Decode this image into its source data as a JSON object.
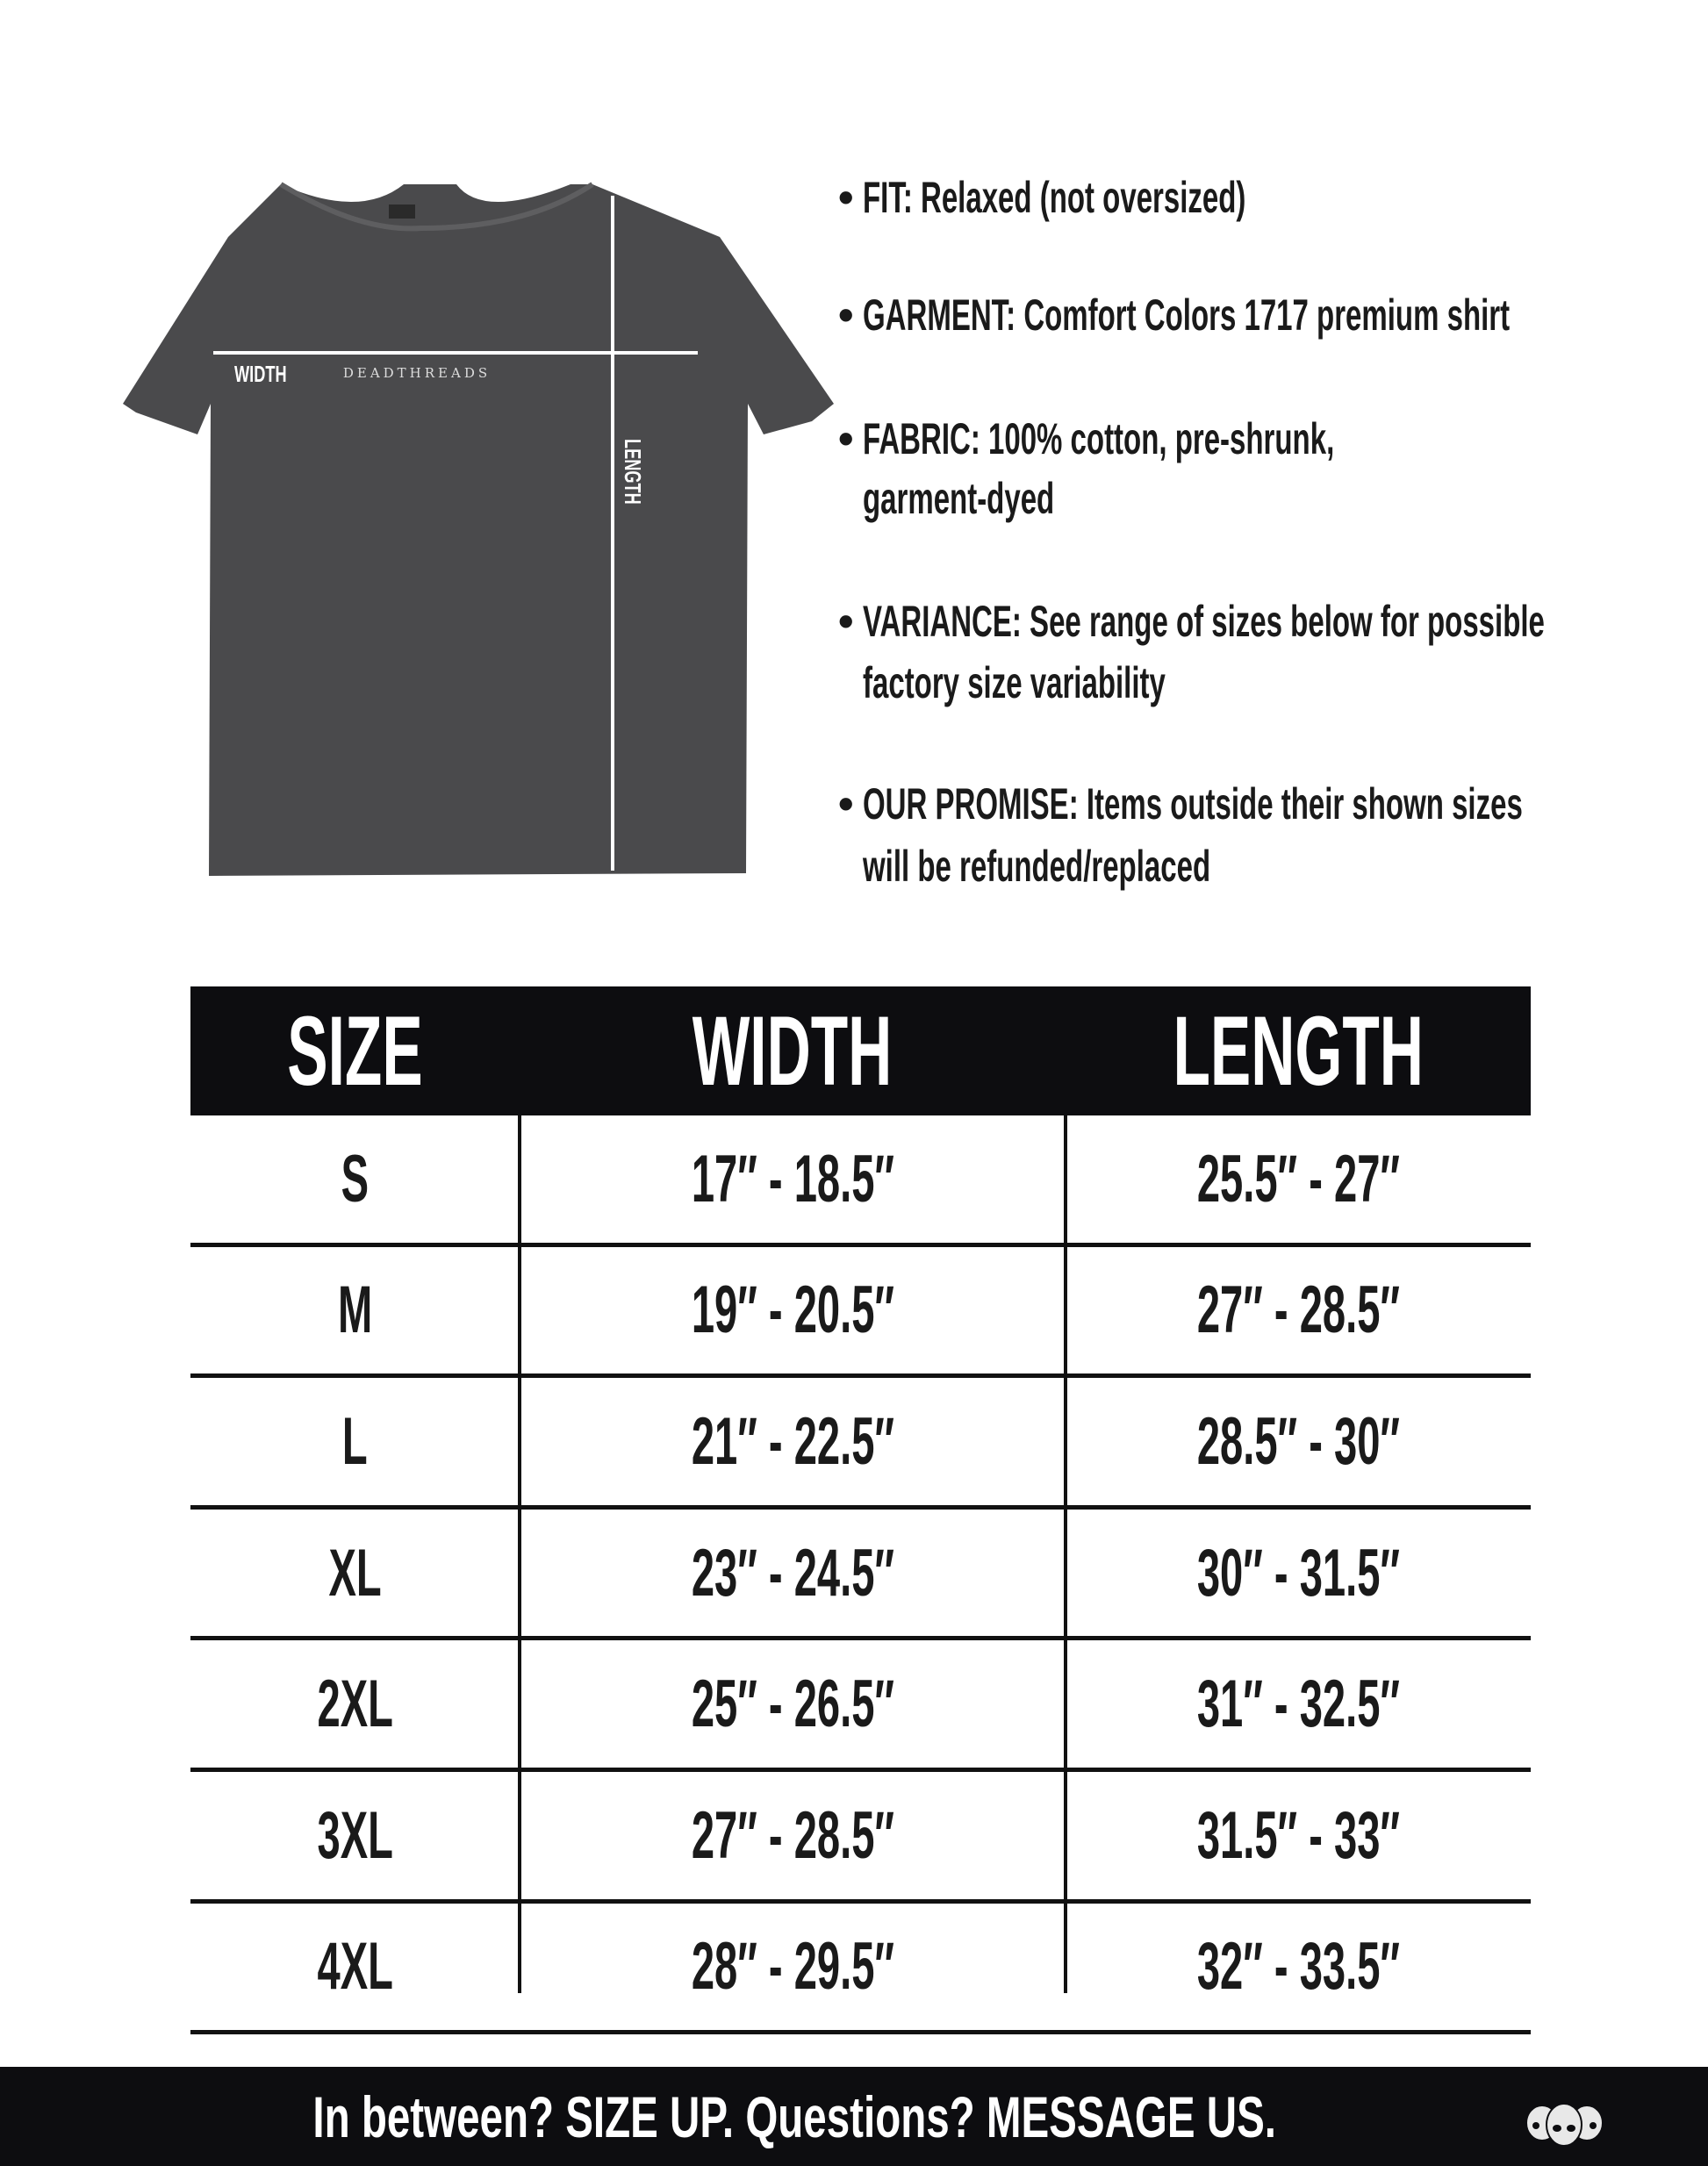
{
  "shirt": {
    "brand": "DEADTHREADS",
    "width_label": "WIDTH",
    "length_label": "LENGTH",
    "color": "#4a4a4c"
  },
  "bullets": [
    {
      "lines": [
        "FIT: Relaxed (not oversized)"
      ]
    },
    {
      "lines": [
        "GARMENT: Comfort Colors 1717 premium shirt"
      ]
    },
    {
      "lines": [
        "FABRIC: 100% cotton, pre-shrunk,",
        "garment-dyed"
      ]
    },
    {
      "lines": [
        "VARIANCE: See range of sizes below for possible",
        "factory size variability"
      ]
    },
    {
      "lines": [
        "OUR PROMISE: Items outside their shown sizes",
        "will be refunded/replaced"
      ]
    }
  ],
  "table": {
    "headers": [
      "SIZE",
      "WIDTH",
      "LENGTH"
    ],
    "rows": [
      [
        "S",
        "17″ - 18.5″",
        "25.5″ - 27″"
      ],
      [
        "M",
        "19″ - 20.5″",
        "27″ - 28.5″"
      ],
      [
        "L",
        "21″ - 22.5″",
        "28.5″ - 30″"
      ],
      [
        "XL",
        "23″ - 24.5″",
        "30″ - 31.5″"
      ],
      [
        "2XL",
        "25″ - 26.5″",
        "31″ - 32.5″"
      ],
      [
        "3XL",
        "27″ - 28.5″",
        "31.5″ - 33″"
      ],
      [
        "4XL",
        "28″ - 29.5″",
        "32″ - 33.5″"
      ]
    ]
  },
  "footer": {
    "text": "In between? SIZE UP. Questions? MESSAGE US.",
    "logo_icon": "three-skulls-icon"
  }
}
